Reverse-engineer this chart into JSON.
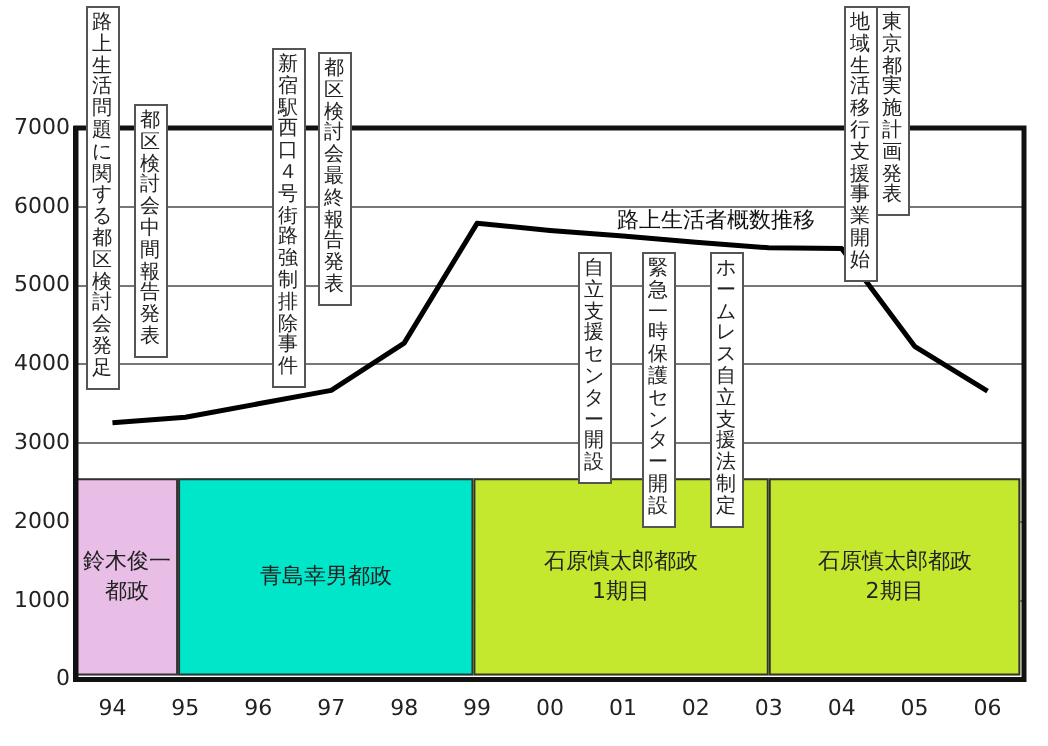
{
  "chart_data": {
    "type": "line",
    "x": [
      1994,
      1995,
      1996,
      1997,
      1998,
      1999,
      2000,
      2001,
      2002,
      2003,
      2004,
      2005,
      2006
    ],
    "xlim": [
      1993.5,
      2006.5
    ],
    "xticks": [
      {
        "value": 1994,
        "label": "94"
      },
      {
        "value": 1995,
        "label": "95"
      },
      {
        "value": 1996,
        "label": "96"
      },
      {
        "value": 1997,
        "label": "97"
      },
      {
        "value": 1998,
        "label": "98"
      },
      {
        "value": 1999,
        "label": "99"
      },
      {
        "value": 2000,
        "label": "00"
      },
      {
        "value": 2001,
        "label": "01"
      },
      {
        "value": 2002,
        "label": "02"
      },
      {
        "value": 2003,
        "label": "03"
      },
      {
        "value": 2004,
        "label": "04"
      },
      {
        "value": 2005,
        "label": "05"
      },
      {
        "value": 2006,
        "label": "06"
      }
    ],
    "ylim": [
      0,
      7000
    ],
    "yticks": [
      0,
      1000,
      2000,
      3000,
      4000,
      5000,
      6000,
      7000
    ],
    "series": [
      {
        "name": "路上生活者概数推移",
        "color": "#000000",
        "values": [
          3260,
          3330,
          3500,
          3670,
          4270,
          5790,
          5700,
          5630,
          5550,
          5480,
          5470,
          4230,
          3660
        ]
      }
    ],
    "bands": [
      {
        "axis": "x",
        "from": 1993.5,
        "to": 1994.9,
        "label": "鈴木俊一都政",
        "color": "#e8bde6"
      },
      {
        "axis": "x",
        "from": 1994.9,
        "to": 1998.95,
        "label": "青島幸男都政",
        "color": "#00e6c8"
      },
      {
        "axis": "x",
        "from": 1998.95,
        "to": 2003,
        "label": "石原慎太郎都政\n1期目",
        "color": "#c4e82e"
      },
      {
        "axis": "x",
        "from": 2003,
        "to": 2006.45,
        "label": "石原慎太郎都政\n2期目",
        "color": "#c4e82e"
      }
    ],
    "annotations": [
      "路上生活問題に関する都区検討会発足",
      "都区検討会中間報告発表",
      "新宿駅西口４号街路強制排除事件",
      "都区検討会最終報告発表",
      "自立支援センター開設",
      "緊急一時保護センター開設",
      "ホームレス自立支援法制定",
      "地域生活移行支援事業開始",
      "東京都実施計画発表"
    ],
    "grid": "y",
    "legend": false,
    "marker": "none",
    "line_style": "solid"
  }
}
